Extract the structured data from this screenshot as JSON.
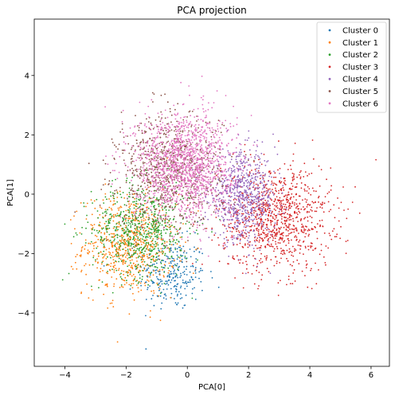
{
  "chart_data": {
    "type": "scatter",
    "title": "PCA projection",
    "xlabel": "PCA[0]",
    "ylabel": "PCA[1]",
    "xlim": [
      -5.0,
      6.6
    ],
    "ylim": [
      -5.8,
      5.9
    ],
    "xticks": [
      -4,
      -2,
      0,
      2,
      4,
      6
    ],
    "yticks": [
      -4,
      -2,
      0,
      2,
      4
    ],
    "grid": false,
    "legend_position": "top-right",
    "series": [
      {
        "name": "Cluster 0",
        "color": "#1f77b4",
        "center": [
          -0.5,
          -2.7
        ],
        "spread": [
          0.55,
          0.6
        ],
        "count": 260
      },
      {
        "name": "Cluster 1",
        "color": "#ff7f0e",
        "center": [
          -1.9,
          -1.7
        ],
        "spread": [
          0.75,
          0.85
        ],
        "count": 700
      },
      {
        "name": "Cluster 2",
        "color": "#2ca02c",
        "center": [
          -1.5,
          -1.2
        ],
        "spread": [
          0.8,
          0.8
        ],
        "count": 650
      },
      {
        "name": "Cluster 3",
        "color": "#d62728",
        "center": [
          2.9,
          -0.8
        ],
        "spread": [
          0.9,
          0.9
        ],
        "count": 1000
      },
      {
        "name": "Cluster 4",
        "color": "#9467bd",
        "center": [
          1.8,
          -0.1
        ],
        "spread": [
          0.55,
          0.75
        ],
        "count": 700
      },
      {
        "name": "Cluster 5",
        "color": "#8c564b",
        "center": [
          -0.6,
          0.8
        ],
        "spread": [
          0.85,
          0.95
        ],
        "count": 800
      },
      {
        "name": "Cluster 6",
        "color": "#e377c2",
        "center": [
          -0.1,
          1.0
        ],
        "spread": [
          0.8,
          0.9
        ],
        "count": 1500
      }
    ]
  }
}
